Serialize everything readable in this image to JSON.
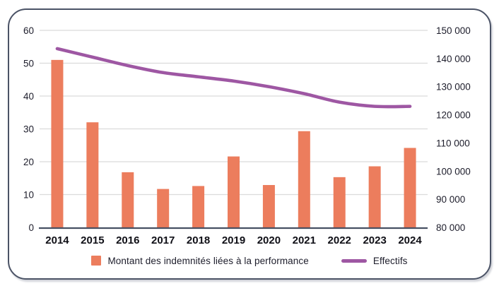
{
  "colors": {
    "bar": "#EC7D5D",
    "line": "#9E57A3",
    "grid": "#DBDBDB",
    "axis_line": "#475063",
    "tick_text": "#1d1d2b",
    "year_text": "#0f0f16",
    "card_border": "#4B5366"
  },
  "chart_data": {
    "type": "bar",
    "subtype": "combo-bar-line",
    "categories": [
      "2014",
      "2015",
      "2016",
      "2017",
      "2018",
      "2019",
      "2020",
      "2021",
      "2022",
      "2023",
      "2024"
    ],
    "series": [
      {
        "name": "Montant des indemnités liées à la performance",
        "type": "bar",
        "axis": "left",
        "values": [
          51,
          32,
          16.8,
          11.7,
          12.6,
          21.6,
          12.9,
          29.3,
          15.3,
          18.6,
          24.2
        ]
      },
      {
        "name": "Effectifs",
        "type": "line",
        "axis": "right",
        "values": [
          143500,
          140500,
          137500,
          135000,
          133500,
          132000,
          130000,
          127500,
          124500,
          123000,
          123000
        ]
      }
    ],
    "title": "",
    "xlabel": "",
    "ylabel": "",
    "left_axis": {
      "min": 0,
      "max": 60,
      "step": 10,
      "tick_labels": [
        "0",
        "10",
        "20",
        "30",
        "40",
        "50",
        "60"
      ]
    },
    "right_axis": {
      "min": 80000,
      "max": 150000,
      "step": 10000,
      "tick_labels": [
        "80 000",
        "90 000",
        "100 000",
        "110 000",
        "120 000",
        "130 000",
        "140 000",
        "150 000"
      ]
    },
    "grid": true,
    "legend_position": "bottom"
  }
}
